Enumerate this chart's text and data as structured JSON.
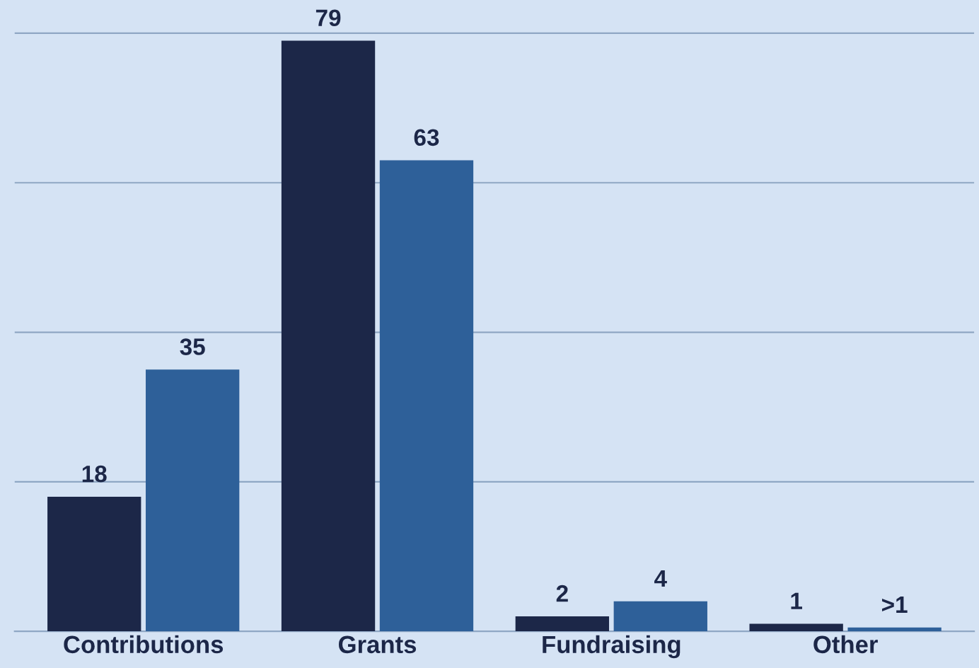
{
  "chart_data": {
    "type": "bar",
    "categories": [
      "Contributions",
      "Grants",
      "Fundraising",
      "Other"
    ],
    "series": [
      {
        "color": "#1c2748",
        "values": [
          18,
          79,
          2,
          1
        ],
        "value_labels": [
          "18",
          "79",
          "2",
          "1"
        ]
      },
      {
        "color": "#2e6099",
        "values": [
          35,
          63,
          4,
          0.5
        ],
        "value_labels": [
          "35",
          "63",
          "4",
          ">1"
        ]
      }
    ],
    "ylim": [
      0,
      84
    ],
    "yticks": [
      {
        "value": 20,
        "label": null
      },
      {
        "value": 40,
        "label": null
      },
      {
        "value": 60,
        "label": null
      },
      {
        "value": 80,
        "label": null
      }
    ],
    "grid": "y",
    "tick_labels": "x"
  }
}
